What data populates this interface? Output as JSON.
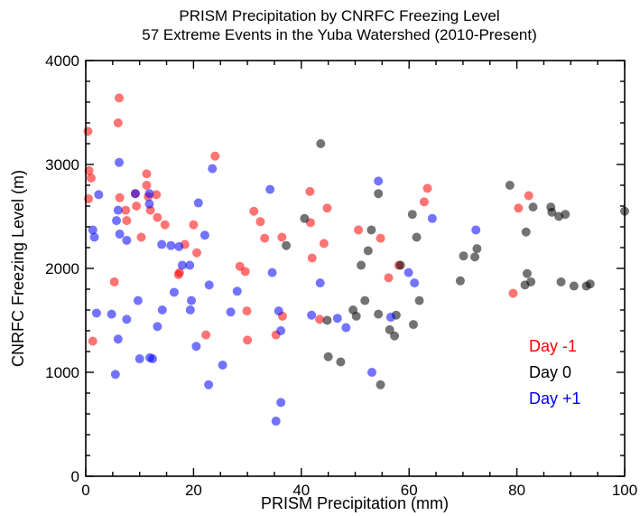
{
  "chart_data": {
    "type": "scatter",
    "title": "PRISM Precipitation by CNRFC Freezing Level",
    "subtitle": "57 Extreme Events in the Yuba Watershed (2010-Present)",
    "xlabel": "PRISM Precipitation (mm)",
    "ylabel": "CNRFC Freezing Level (m)",
    "xlim": [
      0,
      100
    ],
    "ylim": [
      0,
      4000
    ],
    "xticks": [
      "0",
      "20",
      "40",
      "60",
      "80",
      "100"
    ],
    "yticks": [
      "0",
      "1000",
      "2000",
      "3000",
      "4000"
    ],
    "grid": false,
    "legend_position": "lower-right",
    "series": [
      {
        "name": "Day -1",
        "color": "#ff0000",
        "points": [
          [
            0.4,
            3320
          ],
          [
            0.6,
            2940
          ],
          [
            1.0,
            2870
          ],
          [
            0.5,
            2670
          ],
          [
            1.3,
            1300
          ],
          [
            5.3,
            1870
          ],
          [
            6.2,
            3640
          ],
          [
            6.0,
            3400
          ],
          [
            6.3,
            2680
          ],
          [
            7.4,
            2560
          ],
          [
            7.6,
            2460
          ],
          [
            9.2,
            2720
          ],
          [
            9.4,
            2600
          ],
          [
            10.3,
            2300
          ],
          [
            11.3,
            2910
          ],
          [
            11.3,
            2800
          ],
          [
            11.6,
            2690
          ],
          [
            12.0,
            2560
          ],
          [
            13.1,
            2710
          ],
          [
            13.3,
            2490
          ],
          [
            14.7,
            2420
          ],
          [
            17.2,
            1940
          ],
          [
            17.4,
            1960
          ],
          [
            18.4,
            2230
          ],
          [
            20.0,
            2420
          ],
          [
            20.6,
            2150
          ],
          [
            22.3,
            1360
          ],
          [
            24.0,
            3080
          ],
          [
            28.6,
            2020
          ],
          [
            29.6,
            1970
          ],
          [
            29.9,
            1590
          ],
          [
            30.0,
            1310
          ],
          [
            31.2,
            2550
          ],
          [
            32.4,
            2450
          ],
          [
            33.2,
            2290
          ],
          [
            35.3,
            1360
          ],
          [
            36.4,
            2300
          ],
          [
            36.5,
            1540
          ],
          [
            41.6,
            2740
          ],
          [
            41.7,
            2440
          ],
          [
            42.0,
            2100
          ],
          [
            43.4,
            1510
          ],
          [
            44.2,
            2240
          ],
          [
            44.8,
            2580
          ],
          [
            50.6,
            2370
          ],
          [
            54.7,
            2290
          ],
          [
            56.2,
            1910
          ],
          [
            58.1,
            2030
          ],
          [
            62.8,
            2640
          ],
          [
            63.4,
            2770
          ],
          [
            79.3,
            1760
          ],
          [
            80.3,
            2580
          ],
          [
            82.2,
            2700
          ]
        ]
      },
      {
        "name": "Day 0",
        "color": "#000000",
        "points": [
          [
            37.2,
            2220
          ],
          [
            40.6,
            2480
          ],
          [
            43.6,
            3200
          ],
          [
            44.8,
            1500
          ],
          [
            45.0,
            1150
          ],
          [
            47.3,
            1100
          ],
          [
            49.6,
            1600
          ],
          [
            50.2,
            1540
          ],
          [
            51.1,
            2030
          ],
          [
            51.8,
            1690
          ],
          [
            52.4,
            2170
          ],
          [
            53.0,
            2370
          ],
          [
            54.3,
            2720
          ],
          [
            54.3,
            1560
          ],
          [
            54.7,
            880
          ],
          [
            56.4,
            1410
          ],
          [
            57.3,
            1350
          ],
          [
            57.6,
            1550
          ],
          [
            58.4,
            2030
          ],
          [
            60.6,
            2520
          ],
          [
            60.8,
            1460
          ],
          [
            61.4,
            2300
          ],
          [
            61.9,
            1690
          ],
          [
            69.5,
            1880
          ],
          [
            70.1,
            2120
          ],
          [
            72.2,
            2110
          ],
          [
            72.6,
            2190
          ],
          [
            78.7,
            2800
          ],
          [
            81.5,
            1840
          ],
          [
            81.7,
            2350
          ],
          [
            81.9,
            1950
          ],
          [
            82.6,
            1870
          ],
          [
            83.0,
            2590
          ],
          [
            86.3,
            2590
          ],
          [
            86.5,
            2540
          ],
          [
            87.8,
            2500
          ],
          [
            88.2,
            1870
          ],
          [
            89.0,
            2520
          ],
          [
            90.6,
            1830
          ],
          [
            92.9,
            1830
          ],
          [
            93.6,
            1850
          ],
          [
            100.0,
            2550
          ]
        ]
      },
      {
        "name": "Day +1",
        "color": "#0000ff",
        "points": [
          [
            1.3,
            2370
          ],
          [
            1.6,
            2300
          ],
          [
            2.0,
            1570
          ],
          [
            2.4,
            2710
          ],
          [
            4.8,
            1560
          ],
          [
            5.5,
            980
          ],
          [
            5.7,
            2460
          ],
          [
            6.0,
            2560
          ],
          [
            6.0,
            1320
          ],
          [
            6.2,
            3020
          ],
          [
            6.3,
            2330
          ],
          [
            7.6,
            2270
          ],
          [
            7.6,
            1510
          ],
          [
            9.2,
            2720
          ],
          [
            9.7,
            1690
          ],
          [
            10.0,
            1130
          ],
          [
            11.8,
            2620
          ],
          [
            11.8,
            2720
          ],
          [
            11.9,
            1140
          ],
          [
            12.4,
            1130
          ],
          [
            13.3,
            1440
          ],
          [
            14.1,
            2230
          ],
          [
            14.2,
            1600
          ],
          [
            15.8,
            2220
          ],
          [
            16.4,
            1770
          ],
          [
            17.3,
            2210
          ],
          [
            17.9,
            2030
          ],
          [
            19.3,
            2030
          ],
          [
            19.4,
            1600
          ],
          [
            19.6,
            1690
          ],
          [
            20.5,
            1250
          ],
          [
            20.9,
            2630
          ],
          [
            22.1,
            2320
          ],
          [
            22.8,
            880
          ],
          [
            22.9,
            1840
          ],
          [
            23.5,
            2960
          ],
          [
            25.4,
            1070
          ],
          [
            26.9,
            1580
          ],
          [
            28.1,
            1780
          ],
          [
            34.2,
            2760
          ],
          [
            34.6,
            1960
          ],
          [
            35.3,
            530
          ],
          [
            35.8,
            1590
          ],
          [
            36.2,
            1400
          ],
          [
            36.2,
            710
          ],
          [
            41.9,
            1550
          ],
          [
            43.5,
            1860
          ],
          [
            46.7,
            1520
          ],
          [
            48.3,
            1430
          ],
          [
            53.1,
            1000
          ],
          [
            54.3,
            2840
          ],
          [
            56.6,
            1530
          ],
          [
            59.9,
            1960
          ],
          [
            61.0,
            1860
          ],
          [
            64.3,
            2480
          ],
          [
            72.4,
            2370
          ]
        ]
      }
    ]
  }
}
